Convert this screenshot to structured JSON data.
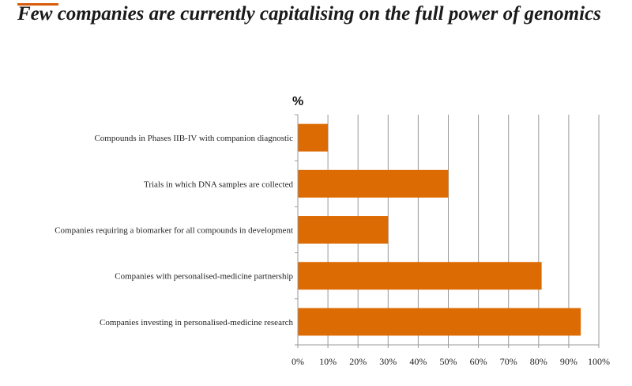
{
  "title": "Few companies are currently capitalising on the full power of genomics",
  "colors": {
    "bar": "#dd6b04",
    "grid": "#9a9a9a",
    "title_rule": "#d85c0a"
  },
  "chart_data": {
    "type": "bar",
    "orientation": "horizontal",
    "unit_label": "%",
    "categories": [
      "Compounds in Phases IIB-IV with companion diagnostic",
      "Trials in which DNA samples are collected",
      "Companies requiring a biomarker for all compounds in development",
      "Companies with personalised-medicine partnership",
      "Companies investing in personalised-medicine research"
    ],
    "values": [
      10,
      50,
      30,
      81,
      94
    ],
    "xlim": [
      0,
      100
    ],
    "xticks": [
      "0%",
      "10%",
      "20%",
      "30%",
      "40%",
      "50%",
      "60%",
      "70%",
      "80%",
      "90%",
      "100%"
    ],
    "grid": true
  }
}
